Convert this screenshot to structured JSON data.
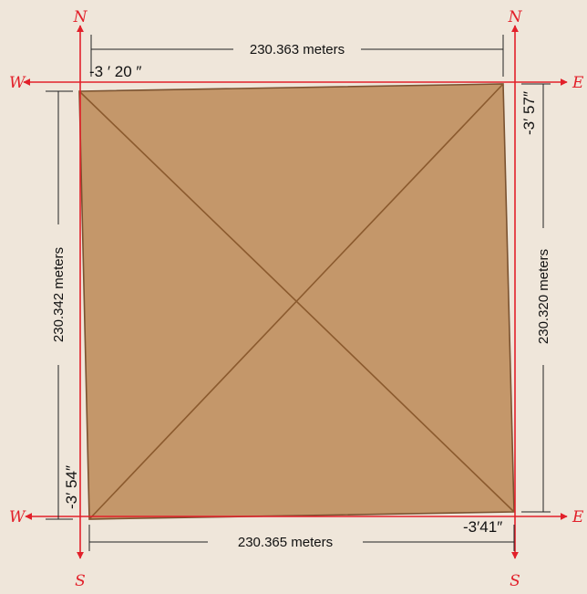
{
  "compass": {
    "n_left": "N",
    "n_right": "N",
    "s_left": "S",
    "s_right": "S",
    "w_top": "W",
    "w_bottom": "W",
    "e_top": "E",
    "e_bottom": "E"
  },
  "dimensions": {
    "top": "230.363 meters",
    "bottom": "230.365 meters",
    "left": "230.342 meters",
    "right": "230.320 meters"
  },
  "angles": {
    "nw": "-3 ′ 20 ″",
    "ne": "-3′ 57″",
    "sw": "-3′ 54″",
    "se": "-3′41″"
  },
  "colors": {
    "background": "#efe6da",
    "base_fill": "#c4976a",
    "base_edge": "#7a5230",
    "reference_lines": "#e2202a"
  }
}
